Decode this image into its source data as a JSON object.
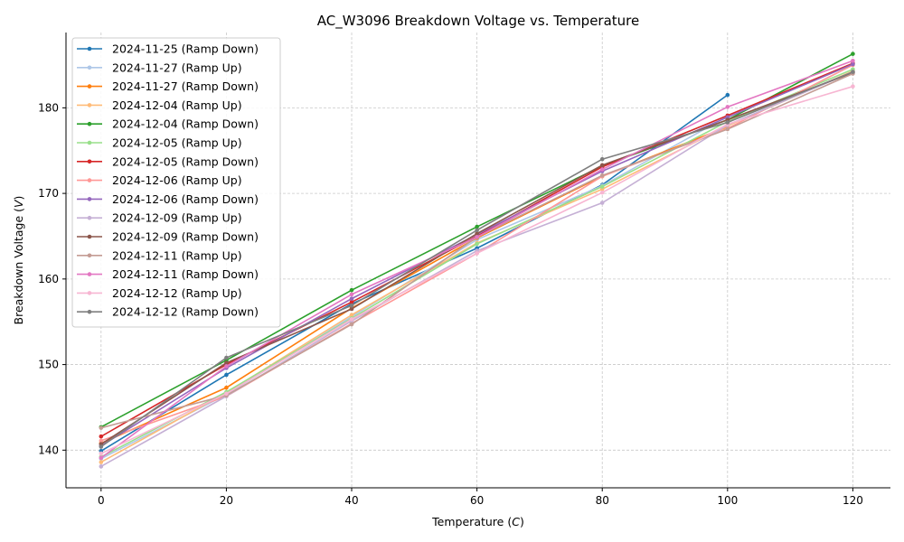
{
  "chart_data": {
    "type": "line",
    "title": "AC_W3096 Breakdown Voltage vs. Temperature",
    "xlabel": "Temperature (",
    "xlabel_var": "C",
    "xlabel_end": ")",
    "ylabel": "Breakdown Voltage (",
    "ylabel_var": "V",
    "ylabel_end": ")",
    "xlim": [
      -5.6,
      126
    ],
    "ylim": [
      135.6,
      188.8
    ],
    "xticks": [
      0,
      20,
      40,
      60,
      80,
      100,
      120
    ],
    "yticks": [
      140,
      150,
      160,
      170,
      180
    ],
    "grid": true,
    "legend_position": "top-left",
    "series": [
      {
        "name": "2024-11-25 (Ramp Down)",
        "color": "#1f77b4",
        "x": [
          0,
          20,
          40,
          60,
          80,
          100
        ],
        "y": [
          139.9,
          148.8,
          157.1,
          163.6,
          171.0,
          181.5
        ]
      },
      {
        "name": "2024-11-27 (Ramp Up)",
        "color": "#aec7e8",
        "x": [
          0,
          20,
          40,
          60,
          80,
          100
        ],
        "y": [
          139.0,
          146.5,
          155.6,
          164.6,
          170.9,
          179.0
        ]
      },
      {
        "name": "2024-11-27 (Ramp Down)",
        "color": "#ff7f0e",
        "x": [
          0,
          20,
          40,
          60,
          80,
          100
        ],
        "y": [
          140.8,
          147.3,
          156.6,
          164.8,
          172.0,
          177.8
        ]
      },
      {
        "name": "2024-12-04 (Ramp Up)",
        "color": "#ffbb78",
        "x": [
          0,
          20,
          40,
          60,
          80,
          100,
          120
        ],
        "y": [
          138.6,
          146.7,
          155.8,
          164.2,
          170.5,
          177.9,
          184.3
        ]
      },
      {
        "name": "2024-12-04 (Ramp Down)",
        "color": "#2ca02c",
        "x": [
          0,
          20,
          40,
          60,
          80,
          100,
          120
        ],
        "y": [
          142.7,
          150.5,
          158.7,
          166.1,
          173.2,
          178.6,
          186.3
        ]
      },
      {
        "name": "2024-12-05 (Ramp Up)",
        "color": "#98df8a",
        "x": [
          0,
          20,
          40,
          60,
          80,
          100,
          120
        ],
        "y": [
          139.2,
          146.8,
          155.4,
          164.1,
          170.8,
          178.4,
          184.5
        ]
      },
      {
        "name": "2024-12-05 (Ramp Down)",
        "color": "#d62728",
        "x": [
          0,
          20,
          40,
          60,
          80,
          100,
          120
        ],
        "y": [
          141.6,
          150.0,
          157.3,
          165.0,
          173.1,
          179.1,
          185.2
        ]
      },
      {
        "name": "2024-12-06 (Ramp Up)",
        "color": "#ff9896",
        "x": [
          0,
          20,
          40,
          60,
          80,
          100,
          120
        ],
        "y": [
          141.1,
          146.3,
          154.8,
          163.0,
          172.0,
          177.6,
          185.0
        ]
      },
      {
        "name": "2024-12-06 (Ramp Down)",
        "color": "#9467bd",
        "x": [
          0,
          20,
          40,
          60,
          80,
          100,
          120
        ],
        "y": [
          140.5,
          149.6,
          157.7,
          165.2,
          172.6,
          178.9,
          185.1
        ]
      },
      {
        "name": "2024-12-09 (Ramp Up)",
        "color": "#c5b0d5",
        "x": [
          0,
          20,
          40,
          60,
          80,
          100,
          120
        ],
        "y": [
          138.1,
          146.3,
          155.1,
          163.3,
          168.9,
          178.0,
          184.2
        ]
      },
      {
        "name": "2024-12-09 (Ramp Down)",
        "color": "#8c564b",
        "x": [
          0,
          20,
          40,
          60,
          80,
          100,
          120
        ],
        "y": [
          140.7,
          150.2,
          156.5,
          165.3,
          173.3,
          178.6,
          184.1
        ]
      },
      {
        "name": "2024-12-11 (Ramp Up)",
        "color": "#c49c94",
        "x": [
          0,
          20,
          40,
          60,
          80,
          100,
          120
        ],
        "y": [
          142.6,
          146.4,
          154.7,
          164.9,
          172.1,
          177.5,
          184.0
        ]
      },
      {
        "name": "2024-12-11 (Ramp Down)",
        "color": "#e377c2",
        "x": [
          0,
          20,
          40,
          60,
          80,
          100,
          120
        ],
        "y": [
          139.1,
          149.8,
          158.2,
          164.9,
          172.8,
          180.1,
          185.5
        ]
      },
      {
        "name": "2024-12-12 (Ramp Up)",
        "color": "#f7b6d2",
        "x": [
          0,
          20,
          40,
          60,
          80,
          100,
          120
        ],
        "y": [
          139.6,
          146.6,
          155.3,
          163.0,
          170.1,
          178.1,
          182.5
        ]
      },
      {
        "name": "2024-12-12 (Ramp Down)",
        "color": "#7f7f7f",
        "x": [
          0,
          20,
          40,
          60,
          80,
          100,
          120
        ],
        "y": [
          140.4,
          150.8,
          156.9,
          165.7,
          174.0,
          178.3,
          184.2
        ]
      }
    ]
  }
}
